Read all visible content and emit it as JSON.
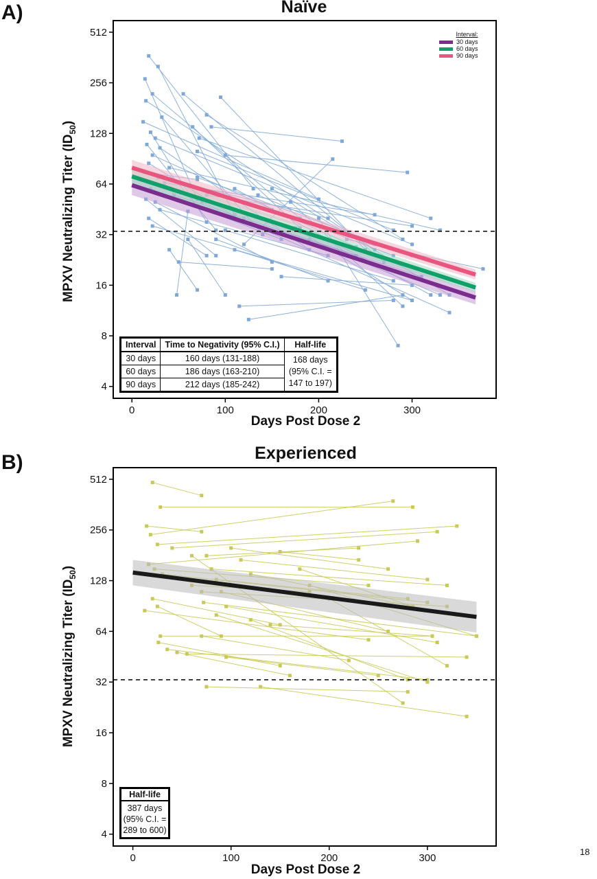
{
  "page_number": "18",
  "panels": {
    "a": {
      "label": "A)",
      "title": "Naïve",
      "ylabel_main": "MPXV Neutralizing Titer (ID",
      "ylabel_sub": "50",
      "ylabel_end": ")",
      "xlabel": "Days Post Dose 2",
      "legend": {
        "title": "Interval:",
        "items": [
          {
            "label": "30 days",
            "color": "#7b2d8e"
          },
          {
            "label": "60 days",
            "color": "#12a06a"
          },
          {
            "label": "90 days",
            "color": "#e8557f"
          }
        ]
      },
      "table": {
        "headers": [
          "Interval",
          "Time to Negativity (95% C.I.)",
          "Half-life"
        ],
        "rows": [
          [
            "30 days",
            "160 days (131-188)"
          ],
          [
            "60 days",
            "186 days (163-210)"
          ],
          [
            "90 days",
            "212 days (185-242)"
          ]
        ],
        "halflife_lines": [
          "168 days",
          "(95% C.I. =",
          "147 to 197)"
        ]
      }
    },
    "b": {
      "label": "B)",
      "title": "Experienced",
      "ylabel_main": "MPXV Neutralizing Titer (ID",
      "ylabel_sub": "50",
      "ylabel_end": ")",
      "xlabel": "Days Post Dose 2",
      "halflife": {
        "header": "Half-life",
        "lines": [
          "387 days",
          "(95% C.I. =",
          "289 to 600)"
        ]
      }
    }
  },
  "chart_data": [
    {
      "type": "line",
      "panel": "A",
      "title": "Naïve",
      "xlabel": "Days Post Dose 2",
      "ylabel": "MPXV Neutralizing Titer (ID50)",
      "y_scale": "log2",
      "xlim": [
        -20,
        390
      ],
      "ylim": [
        3.4,
        600
      ],
      "x_ticks": [
        "0",
        "100",
        "200",
        "300"
      ],
      "x_tick_values": [
        0,
        100,
        200,
        300
      ],
      "y_ticks": [
        "4",
        "8",
        "16",
        "32",
        "64",
        "128",
        "256",
        "512"
      ],
      "y_tick_values": [
        4,
        8,
        16,
        32,
        64,
        128,
        256,
        512
      ],
      "threshold": 33.5,
      "point_color": "#7fa8d8",
      "series": [
        {
          "name": "30 days",
          "color": "#7b2d8e",
          "x": [
            0,
            368
          ],
          "y": [
            63,
            13.5
          ],
          "ci_low": [
            55,
            12.3
          ],
          "ci_high": [
            73,
            14.8
          ],
          "band_color": "#c79bd3"
        },
        {
          "name": "60 days",
          "color": "#12a06a",
          "x": [
            0,
            368
          ],
          "y": [
            71,
            15.5
          ],
          "ci_low": [
            64,
            14.6
          ],
          "ci_high": [
            79,
            16.5
          ],
          "band_color": "#9fd9c1"
        },
        {
          "name": "90 days",
          "color": "#e8557f",
          "x": [
            0,
            368
          ],
          "y": [
            80,
            18.5
          ],
          "ci_low": [
            72,
            17.3
          ],
          "ci_high": [
            89,
            19.8
          ],
          "band_color": "#f3b4c7"
        }
      ],
      "subjects": [
        [
          [
            18,
            370
          ],
          [
            130,
            60
          ]
        ],
        [
          [
            28,
            320
          ],
          [
            110,
            42
          ]
        ],
        [
          [
            14,
            270
          ],
          [
            70,
            52
          ]
        ],
        [
          [
            22,
            220
          ],
          [
            180,
            40
          ]
        ],
        [
          [
            15,
            200
          ],
          [
            260,
            26
          ]
        ],
        [
          [
            32,
            160
          ],
          [
            140,
            32
          ]
        ],
        [
          [
            12,
            150
          ],
          [
            200,
            52
          ]
        ],
        [
          [
            20,
            130
          ],
          [
            80,
            38
          ]
        ],
        [
          [
            25,
            120
          ],
          [
            300,
            28
          ]
        ],
        [
          [
            16,
            110
          ],
          [
            90,
            34
          ]
        ],
        [
          [
            30,
            105
          ],
          [
            190,
            26
          ]
        ],
        [
          [
            22,
            95
          ],
          [
            240,
            27
          ]
        ],
        [
          [
            18,
            85
          ],
          [
            120,
            38
          ]
        ],
        [
          [
            40,
            80
          ],
          [
            330,
            34
          ]
        ],
        [
          [
            14,
            75
          ],
          [
            70,
            68
          ]
        ],
        [
          [
            28,
            70
          ],
          [
            210,
            40
          ]
        ],
        [
          [
            35,
            65
          ],
          [
            260,
            42
          ]
        ],
        [
          [
            20,
            60
          ],
          [
            160,
            30
          ]
        ],
        [
          [
            45,
            55
          ],
          [
            240,
            24
          ]
        ],
        [
          [
            15,
            52
          ],
          [
            90,
            24
          ]
        ],
        [
          [
            25,
            50
          ],
          [
            150,
            22
          ]
        ],
        [
          [
            30,
            45
          ],
          [
            210,
            24
          ]
        ],
        [
          [
            18,
            40
          ],
          [
            80,
            24
          ]
        ],
        [
          [
            22,
            36
          ],
          [
            300,
            13
          ]
        ],
        [
          [
            95,
            210
          ],
          [
            250,
            26
          ]
        ],
        [
          [
            80,
            165
          ],
          [
            290,
            30
          ]
        ],
        [
          [
            85,
            140
          ],
          [
            225,
            115
          ]
        ],
        [
          [
            72,
            120
          ],
          [
            320,
            40
          ]
        ],
        [
          [
            70,
            70
          ],
          [
            300,
            24
          ]
        ],
        [
          [
            75,
            50
          ],
          [
            340,
            11
          ]
        ],
        [
          [
            55,
            220
          ],
          [
            270,
            22
          ]
        ],
        [
          [
            65,
            140
          ],
          [
            180,
            35
          ]
        ],
        [
          [
            100,
            95
          ],
          [
            295,
            75
          ]
        ],
        [
          [
            110,
            60
          ],
          [
            320,
            14
          ]
        ],
        [
          [
            120,
            40
          ],
          [
            310,
            18
          ]
        ],
        [
          [
            135,
            55
          ],
          [
            260,
            28
          ]
        ],
        [
          [
            150,
            45
          ],
          [
            280,
            24
          ]
        ],
        [
          [
            170,
            50
          ],
          [
            290,
            12
          ]
        ],
        [
          [
            175,
            35
          ],
          [
            300,
            13
          ]
        ],
        [
          [
            190,
            30
          ],
          [
            330,
            14
          ]
        ],
        [
          [
            200,
            40
          ],
          [
            285,
            7
          ]
        ],
        [
          [
            215,
            90
          ],
          [
            120,
            28
          ]
        ],
        [
          [
            115,
            12
          ],
          [
            280,
            13
          ]
        ],
        [
          [
            125,
            10
          ],
          [
            290,
            14
          ]
        ],
        [
          [
            100,
            34
          ],
          [
            280,
            17
          ]
        ],
        [
          [
            110,
            26
          ],
          [
            250,
            15
          ]
        ],
        [
          [
            160,
            18
          ],
          [
            300,
            16
          ]
        ],
        [
          [
            90,
            30
          ],
          [
            210,
            17
          ]
        ],
        [
          [
            50,
            22
          ],
          [
            150,
            20
          ]
        ],
        [
          [
            40,
            26
          ],
          [
            70,
            15
          ]
        ],
        [
          [
            60,
            30
          ],
          [
            100,
            14
          ]
        ],
        [
          [
            60,
            44
          ],
          [
            48,
            14
          ]
        ],
        [
          [
            150,
            60
          ],
          [
            340,
            14
          ]
        ],
        [
          [
            80,
            55
          ],
          [
            300,
            36
          ]
        ],
        [
          [
            70,
            100
          ],
          [
            280,
            34
          ]
        ],
        [
          [
            230,
            30
          ],
          [
            376,
            20
          ]
        ]
      ]
    },
    {
      "type": "line",
      "panel": "B",
      "title": "Experienced",
      "xlabel": "Days Post Dose 2",
      "ylabel": "MPXV Neutralizing Titer (ID50)",
      "y_scale": "log2",
      "xlim": [
        -20,
        370
      ],
      "ylim": [
        3.4,
        600
      ],
      "x_ticks": [
        "0",
        "100",
        "200",
        "300"
      ],
      "x_tick_values": [
        0,
        100,
        200,
        300
      ],
      "y_ticks": [
        "4",
        "8",
        "16",
        "32",
        "64",
        "128",
        "256",
        "512"
      ],
      "y_tick_values": [
        4,
        8,
        16,
        32,
        64,
        128,
        256,
        512
      ],
      "threshold": 33,
      "point_color": "#c9c95a",
      "series": [
        {
          "name": "",
          "color": "#1a1a1a",
          "x": [
            0,
            350
          ],
          "y": [
            143,
            78
          ],
          "ci_low": [
            120,
            63
          ],
          "ci_high": [
            170,
            96
          ],
          "band_color": "#b9b9b9"
        }
      ],
      "subjects": [
        [
          [
            20,
            490
          ],
          [
            70,
            410
          ]
        ],
        [
          [
            28,
            350
          ],
          [
            285,
            350
          ]
        ],
        [
          [
            14,
            270
          ],
          [
            70,
            250
          ]
        ],
        [
          [
            18,
            240
          ],
          [
            265,
            380
          ]
        ],
        [
          [
            25,
            210
          ],
          [
            330,
            270
          ]
        ],
        [
          [
            40,
            200
          ],
          [
            310,
            250
          ]
        ],
        [
          [
            16,
            160
          ],
          [
            290,
            220
          ]
        ],
        [
          [
            22,
            150
          ],
          [
            240,
            120
          ]
        ],
        [
          [
            30,
            140
          ],
          [
            300,
            95
          ]
        ],
        [
          [
            12,
            85
          ],
          [
            240,
            57
          ]
        ],
        [
          [
            20,
            100
          ],
          [
            150,
            70
          ]
        ],
        [
          [
            25,
            90
          ],
          [
            90,
            60
          ]
        ],
        [
          [
            28,
            60
          ],
          [
            305,
            60
          ]
        ],
        [
          [
            26,
            55
          ],
          [
            150,
            40
          ]
        ],
        [
          [
            35,
            50
          ],
          [
            300,
            33
          ]
        ],
        [
          [
            45,
            48
          ],
          [
            160,
            35
          ]
        ],
        [
          [
            55,
            47
          ],
          [
            340,
            45
          ]
        ],
        [
          [
            70,
            110
          ],
          [
            320,
            90
          ]
        ],
        [
          [
            72,
            95
          ],
          [
            350,
            60
          ]
        ],
        [
          [
            75,
            180
          ],
          [
            230,
            200
          ]
        ],
        [
          [
            80,
            150
          ],
          [
            320,
            120
          ]
        ],
        [
          [
            85,
            130
          ],
          [
            280,
            100
          ]
        ],
        [
          [
            90,
            110
          ],
          [
            260,
            64
          ]
        ],
        [
          [
            95,
            90
          ],
          [
            310,
            55
          ]
        ],
        [
          [
            100,
            200
          ],
          [
            260,
            150
          ]
        ],
        [
          [
            110,
            170
          ],
          [
            300,
            130
          ]
        ],
        [
          [
            120,
            140
          ],
          [
            330,
            80
          ]
        ],
        [
          [
            60,
            180
          ],
          [
            275,
            24
          ]
        ],
        [
          [
            75,
            30
          ],
          [
            280,
            28
          ]
        ],
        [
          [
            130,
            30
          ],
          [
            340,
            20
          ]
        ],
        [
          [
            85,
            80
          ],
          [
            300,
            32
          ]
        ],
        [
          [
            60,
            120
          ],
          [
            180,
            110
          ]
        ],
        [
          [
            150,
            190
          ],
          [
            230,
            170
          ]
        ],
        [
          [
            180,
            120
          ],
          [
            350,
            60
          ]
        ],
        [
          [
            200,
            100
          ],
          [
            320,
            40
          ]
        ],
        [
          [
            170,
            150
          ],
          [
            285,
            90
          ]
        ],
        [
          [
            140,
            70
          ],
          [
            305,
            60
          ]
        ],
        [
          [
            120,
            75
          ],
          [
            280,
            33
          ]
        ],
        [
          [
            70,
            60
          ],
          [
            220,
            43
          ]
        ],
        [
          [
            95,
            45
          ],
          [
            250,
            35
          ]
        ]
      ]
    }
  ]
}
